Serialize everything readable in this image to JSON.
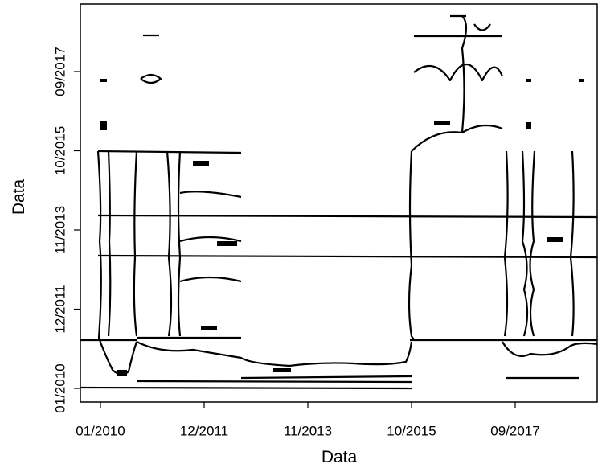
{
  "chart_data": {
    "type": "recurrence",
    "x_label": "Data",
    "y_label": "Data",
    "xticks": [
      "01/2010",
      "12/2011",
      "11/2013",
      "10/2015",
      "09/2017"
    ],
    "yticks": [
      "01/2010",
      "12/2011",
      "11/2013",
      "10/2015",
      "09/2017"
    ]
  }
}
